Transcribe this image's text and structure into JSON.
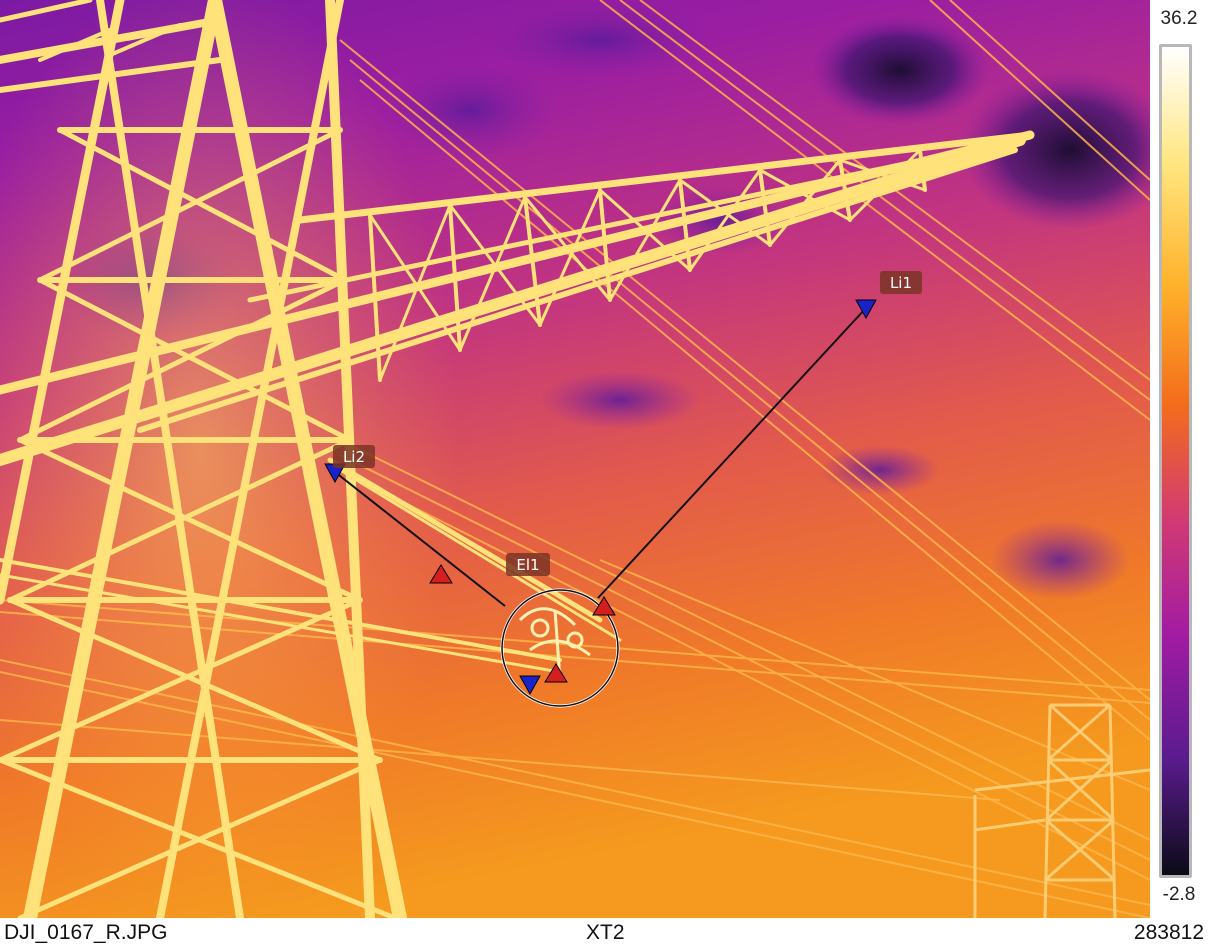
{
  "scale": {
    "max_label": "36.2",
    "min_label": "-2.8",
    "palette": "ironbow",
    "colors": [
      "#ffffff",
      "#ffe680",
      "#ffb12a",
      "#f46d1b",
      "#d23a72",
      "#a21ba3",
      "#5a1b8f",
      "#0b0b17"
    ]
  },
  "annotations": {
    "ellipse_label": "El1",
    "line1_label": "Li1",
    "line2_label": "Li2",
    "label_bg_color": "#7a3424",
    "min_marker_color": "#1a23c9",
    "max_marker_color": "#d51f1f"
  },
  "footer": {
    "file_name": "DJI_0167_R.JPG",
    "camera_model": "XT2",
    "image_id": "283812"
  }
}
